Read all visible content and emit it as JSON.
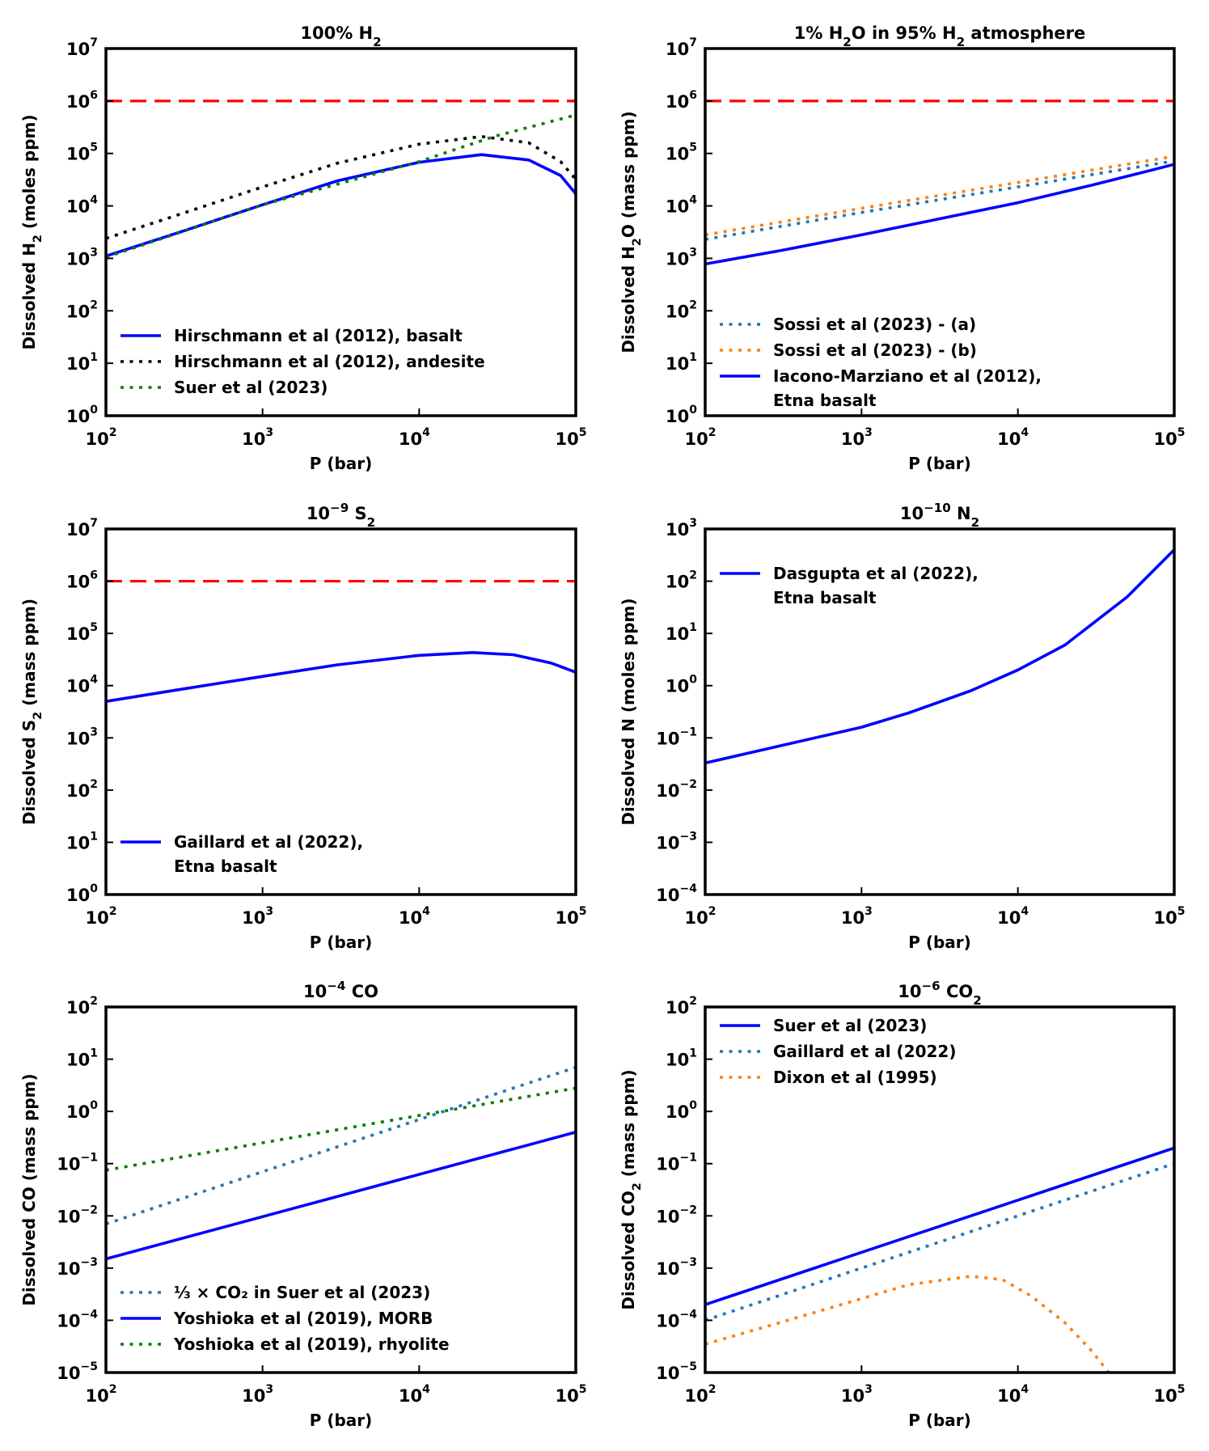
{
  "colors": {
    "blue": "#0000ff",
    "black": "#000000",
    "green": "#008000",
    "red": "#ff0000",
    "steel": "#1f77b4",
    "orange": "#ff7f0e"
  },
  "chart_data": [
    {
      "id": "h2",
      "type": "line",
      "scale": "log-log",
      "title_parts": [
        [
          "100% H",
          false
        ],
        [
          "2",
          "sub"
        ]
      ],
      "title_text": "100% H2",
      "xlabel": "P (bar)",
      "ylabel_parts": [
        [
          "Dissolved H",
          false
        ],
        [
          "2",
          "sub"
        ],
        [
          " (moles ppm)",
          false
        ]
      ],
      "ylabel_text": "Dissolved H2 (moles ppm)",
      "xlim": [
        100,
        100000
      ],
      "ylim": [
        1,
        10000000
      ],
      "x_ticks_exp": [
        2,
        3,
        4,
        5
      ],
      "y_ticks_exp": [
        0,
        1,
        2,
        3,
        4,
        5,
        6,
        7
      ],
      "tick_base": "10",
      "legend_position": "lower-left",
      "reference_line": {
        "y": 1000000,
        "color": "red",
        "style": "dashed"
      },
      "series": [
        {
          "name": "Hirschmann et al (2012), basalt",
          "color": "blue",
          "style": "solid",
          "legend": [
            "Hirschmann et al (2012), basalt"
          ],
          "points": [
            [
              100,
              1100
            ],
            [
              300,
              3200
            ],
            [
              1000,
              10500
            ],
            [
              3000,
              30000
            ],
            [
              10000,
              68000
            ],
            [
              25000,
              95000
            ],
            [
              50000,
              75000
            ],
            [
              80000,
              38000
            ],
            [
              100000,
              17000
            ]
          ]
        },
        {
          "name": "Hirschmann et al (2012), andesite",
          "color": "black",
          "style": "dotted",
          "legend": [
            "Hirschmann et al (2012), andesite"
          ],
          "points": [
            [
              100,
              2400
            ],
            [
              300,
              7000
            ],
            [
              1000,
              23000
            ],
            [
              3000,
              65000
            ],
            [
              10000,
              150000
            ],
            [
              25000,
              210000
            ],
            [
              50000,
              160000
            ],
            [
              80000,
              70000
            ],
            [
              100000,
              32000
            ]
          ]
        },
        {
          "name": "Suer et al (2023)",
          "color": "green",
          "style": "dotted",
          "legend": [
            "Suer et al (2023)"
          ],
          "points": [
            [
              100,
              1050
            ],
            [
              1000,
              10500
            ],
            [
              10000,
              70000
            ],
            [
              30000,
              210000
            ],
            [
              100000,
              540000
            ]
          ]
        }
      ]
    },
    {
      "id": "h2o",
      "type": "line",
      "scale": "log-log",
      "title_parts": [
        [
          "1% H",
          false
        ],
        [
          "2",
          "sub"
        ],
        [
          "O in 95% H",
          false
        ],
        [
          "2",
          "sub"
        ],
        [
          " atmosphere",
          false
        ]
      ],
      "title_text": "1% H2O in 95% H2 atmosphere",
      "xlabel": "P (bar)",
      "ylabel_parts": [
        [
          "Dissolved H",
          false
        ],
        [
          "2",
          "sub"
        ],
        [
          "O (mass ppm)",
          false
        ]
      ],
      "ylabel_text": "Dissolved H2O (mass ppm)",
      "xlim": [
        100,
        100000
      ],
      "ylim": [
        1,
        10000000
      ],
      "x_ticks_exp": [
        2,
        3,
        4,
        5
      ],
      "y_ticks_exp": [
        0,
        1,
        2,
        3,
        4,
        5,
        6,
        7
      ],
      "tick_base": "10",
      "legend_position": "lower-left",
      "reference_line": {
        "y": 1000000,
        "color": "red",
        "style": "dashed"
      },
      "series": [
        {
          "name": "Sossi et al (2023) - (a)",
          "color": "steel",
          "style": "dotted",
          "legend": [
            "Sossi et al (2023) - (a)"
          ],
          "points": [
            [
              100,
              2300
            ],
            [
              1000,
              7500
            ],
            [
              10000,
              23000
            ],
            [
              100000,
              72000
            ]
          ]
        },
        {
          "name": "Sossi et al (2023) - (b)",
          "color": "orange",
          "style": "dotted",
          "legend": [
            "Sossi et al (2023) - (b)"
          ],
          "points": [
            [
              100,
              2800
            ],
            [
              1000,
              9000
            ],
            [
              10000,
              28000
            ],
            [
              100000,
              88000
            ]
          ]
        },
        {
          "name": "Iacono-Marziano et al (2012), Etna basalt",
          "color": "blue",
          "style": "solid",
          "legend": [
            "Iacono-Marziano et al (2012),",
            "Etna basalt"
          ],
          "points": [
            [
              100,
              780
            ],
            [
              300,
              1400
            ],
            [
              1000,
              2800
            ],
            [
              3000,
              5500
            ],
            [
              10000,
              11500
            ],
            [
              30000,
              25000
            ],
            [
              60000,
              42000
            ],
            [
              100000,
              62000
            ]
          ]
        }
      ]
    },
    {
      "id": "s2",
      "type": "line",
      "scale": "log-log",
      "title_parts": [
        [
          "10",
          false
        ],
        [
          "−9",
          "sup"
        ],
        [
          " S",
          false
        ],
        [
          "2",
          "sub"
        ]
      ],
      "title_text": "10−9 S2",
      "xlabel": "P (bar)",
      "ylabel_parts": [
        [
          "Dissolved S",
          false
        ],
        [
          "2",
          "sub"
        ],
        [
          " (mass ppm)",
          false
        ]
      ],
      "ylabel_text": "Dissolved S2 (mass ppm)",
      "xlim": [
        100,
        100000
      ],
      "ylim": [
        1,
        10000000
      ],
      "x_ticks_exp": [
        2,
        3,
        4,
        5
      ],
      "y_ticks_exp": [
        0,
        1,
        2,
        3,
        4,
        5,
        6,
        7
      ],
      "tick_base": "10",
      "legend_position": "lower-left",
      "reference_line": {
        "y": 1000000,
        "color": "red",
        "style": "dashed"
      },
      "series": [
        {
          "name": "Gaillard et al (2022), Etna basalt",
          "color": "blue",
          "style": "solid",
          "legend": [
            "Gaillard et al (2022),",
            "Etna basalt"
          ],
          "points": [
            [
              100,
              5000
            ],
            [
              300,
              8500
            ],
            [
              1000,
              15000
            ],
            [
              3000,
              25000
            ],
            [
              10000,
              38000
            ],
            [
              22000,
              43000
            ],
            [
              40000,
              39000
            ],
            [
              70000,
              27000
            ],
            [
              100000,
              18000
            ]
          ]
        }
      ]
    },
    {
      "id": "n2",
      "type": "line",
      "scale": "log-log",
      "title_parts": [
        [
          "10",
          false
        ],
        [
          "−10",
          "sup"
        ],
        [
          " N",
          false
        ],
        [
          "2",
          "sub"
        ]
      ],
      "title_text": "10−10 N2",
      "xlabel": "P (bar)",
      "ylabel_parts": [
        [
          "Dissolved N (moles ppm)",
          false
        ]
      ],
      "ylabel_text": "Dissolved N (moles ppm)",
      "xlim": [
        100,
        100000
      ],
      "ylim": [
        0.0001,
        1000
      ],
      "x_ticks_exp": [
        2,
        3,
        4,
        5
      ],
      "y_ticks_exp": [
        -4,
        -3,
        -2,
        -1,
        0,
        1,
        2,
        3
      ],
      "tick_base": "10",
      "legend_position": "upper-left",
      "series": [
        {
          "name": "Dasgupta et al (2022), Etna basalt",
          "color": "blue",
          "style": "solid",
          "legend": [
            "Dasgupta et al (2022),",
            "Etna basalt"
          ],
          "points": [
            [
              100,
              0.033
            ],
            [
              300,
              0.07
            ],
            [
              1000,
              0.16
            ],
            [
              2000,
              0.3
            ],
            [
              5000,
              0.8
            ],
            [
              10000,
              2
            ],
            [
              20000,
              6
            ],
            [
              50000,
              50
            ],
            [
              100000,
              400
            ]
          ]
        }
      ]
    },
    {
      "id": "co",
      "type": "line",
      "scale": "log-log",
      "title_parts": [
        [
          "10",
          false
        ],
        [
          "−4",
          "sup"
        ],
        [
          " CO",
          false
        ]
      ],
      "title_text": "10−4 CO",
      "xlabel": "P (bar)",
      "ylabel_parts": [
        [
          "Dissolved CO (mass ppm)",
          false
        ]
      ],
      "ylabel_text": "Dissolved CO (mass ppm)",
      "xlim": [
        100,
        100000
      ],
      "ylim": [
        1e-05,
        100
      ],
      "x_ticks_exp": [
        2,
        3,
        4,
        5
      ],
      "y_ticks_exp": [
        -5,
        -4,
        -3,
        -2,
        -1,
        0,
        1,
        2
      ],
      "tick_base": "10",
      "legend_position": "lower-left",
      "series": [
        {
          "name": "1/3 × CO2 in Suer et al (2023)",
          "color": "steel",
          "style": "dotted",
          "legend": [
            "⅓ × CO₂ in Suer et al (2023)"
          ],
          "points": [
            [
              100,
              0.007
            ],
            [
              100000,
              7
            ]
          ]
        },
        {
          "name": "Yoshioka et al (2019), MORB",
          "color": "blue",
          "style": "solid",
          "legend": [
            "Yoshioka et al (2019), MORB"
          ],
          "points": [
            [
              100,
              0.0015
            ],
            [
              100000,
              0.4
            ]
          ]
        },
        {
          "name": "Yoshioka et al (2019), rhyolite",
          "color": "green",
          "style": "dotted",
          "legend": [
            "Yoshioka et al (2019), rhyolite"
          ],
          "points": [
            [
              100,
              0.075
            ],
            [
              100000,
              2.8
            ]
          ]
        }
      ]
    },
    {
      "id": "co2",
      "type": "line",
      "scale": "log-log",
      "title_parts": [
        [
          "10",
          false
        ],
        [
          "−6",
          "sup"
        ],
        [
          " CO",
          false
        ],
        [
          "2",
          "sub"
        ]
      ],
      "title_text": "10−6 CO2",
      "xlabel": "P (bar)",
      "ylabel_parts": [
        [
          "Dissolved CO",
          false
        ],
        [
          "2",
          "sub"
        ],
        [
          " (mass ppm)",
          false
        ]
      ],
      "ylabel_text": "Dissolved CO2 (mass ppm)",
      "xlim": [
        100,
        100000
      ],
      "ylim": [
        1e-05,
        100
      ],
      "x_ticks_exp": [
        2,
        3,
        4,
        5
      ],
      "y_ticks_exp": [
        -5,
        -4,
        -3,
        -2,
        -1,
        0,
        1,
        2
      ],
      "tick_base": "10",
      "legend_position": "upper-left",
      "series": [
        {
          "name": "Suer et al (2023)",
          "color": "blue",
          "style": "solid",
          "legend": [
            "Suer et al (2023)"
          ],
          "points": [
            [
              100,
              0.0002
            ],
            [
              100000,
              0.2
            ]
          ]
        },
        {
          "name": "Gaillard et al (2022)",
          "color": "steel",
          "style": "dotted",
          "legend": [
            "Gaillard et al (2022)"
          ],
          "points": [
            [
              100,
              0.0001
            ],
            [
              100000,
              0.1
            ]
          ]
        },
        {
          "name": "Dixon et al (1995)",
          "color": "orange",
          "style": "dotted",
          "legend": [
            "Dixon et al (1995)"
          ],
          "points": [
            [
              100,
              3.5e-05
            ],
            [
              300,
              9e-05
            ],
            [
              1000,
              0.00026
            ],
            [
              2000,
              0.00048
            ],
            [
              5000,
              0.0007
            ],
            [
              8000,
              0.0006
            ],
            [
              12000,
              0.0003
            ],
            [
              20000,
              9e-05
            ],
            [
              30000,
              2.5e-05
            ],
            [
              38000,
              1e-05
            ]
          ]
        }
      ]
    }
  ]
}
